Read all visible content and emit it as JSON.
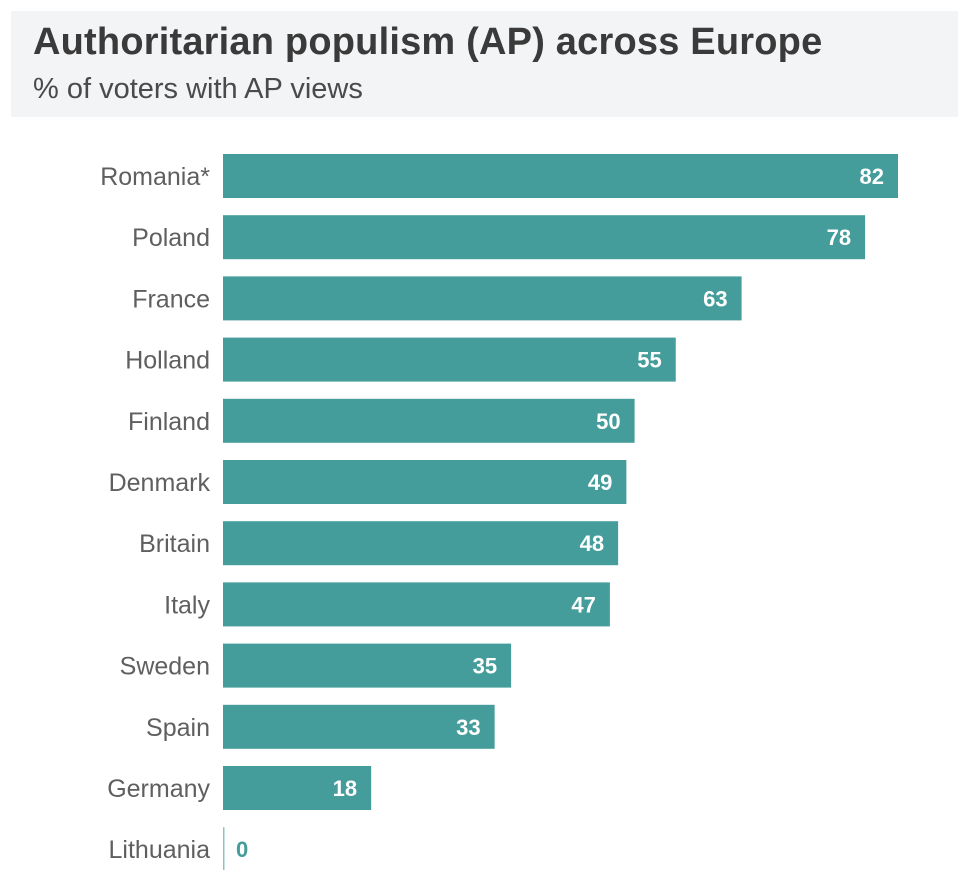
{
  "colors": {
    "bar": "#449c9b",
    "header_bg": "#f3f4f6",
    "label_inside": "#ffffff",
    "label_outside": "#449c9b"
  },
  "chart_data": {
    "type": "bar",
    "orientation": "horizontal",
    "title": "Authoritarian populism (AP) across Europe",
    "subtitle": "% of voters with AP views",
    "xlabel": "",
    "ylabel": "",
    "xlim": [
      0,
      82
    ],
    "grid": false,
    "legend": "none",
    "categories": [
      "Romania*",
      "Poland",
      "France",
      "Holland",
      "Finland",
      "Denmark",
      "Britain",
      "Italy",
      "Sweden",
      "Spain",
      "Germany",
      "Lithuania"
    ],
    "values": [
      82,
      78,
      63,
      55,
      50,
      49,
      48,
      47,
      35,
      33,
      18,
      0
    ]
  }
}
